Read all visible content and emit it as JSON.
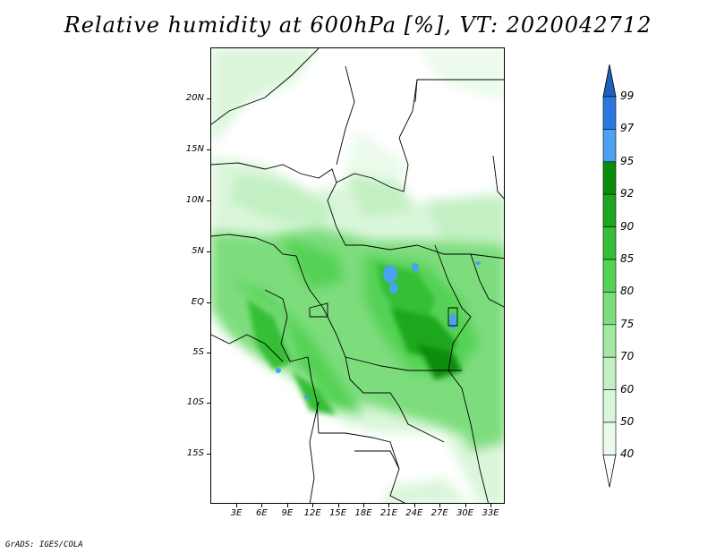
{
  "title": "Relative humidity at 600hPa [%], VT: 2020042712",
  "credit": "GrADS: IGES/COLA",
  "map": {
    "lat_labels": [
      "20N",
      "15N",
      "10N",
      "5N",
      "EQ",
      "5S",
      "10S",
      "15S"
    ],
    "lon_labels": [
      "3E",
      "6E",
      "9E",
      "12E",
      "15E",
      "18E",
      "21E",
      "24E",
      "27E",
      "30E",
      "33E"
    ]
  },
  "colorbar": {
    "labels": [
      "99",
      "97",
      "95",
      "92",
      "90",
      "85",
      "80",
      "75",
      "70",
      "60",
      "50",
      "40"
    ],
    "colors": {
      "above_99": "#1f5fbf",
      "97_99": "#2b79e0",
      "95_97": "#4aa2f0",
      "92_95": "#0a8c0a",
      "90_92": "#1ea71e",
      "85_90": "#36bf36",
      "80_85": "#54d254",
      "75_80": "#7ddd7d",
      "70_75": "#a3e8a3",
      "60_70": "#c2f0c2",
      "50_60": "#daf6da",
      "40_50": "#ebfbeb",
      "below_40": "#ffffff"
    }
  }
}
